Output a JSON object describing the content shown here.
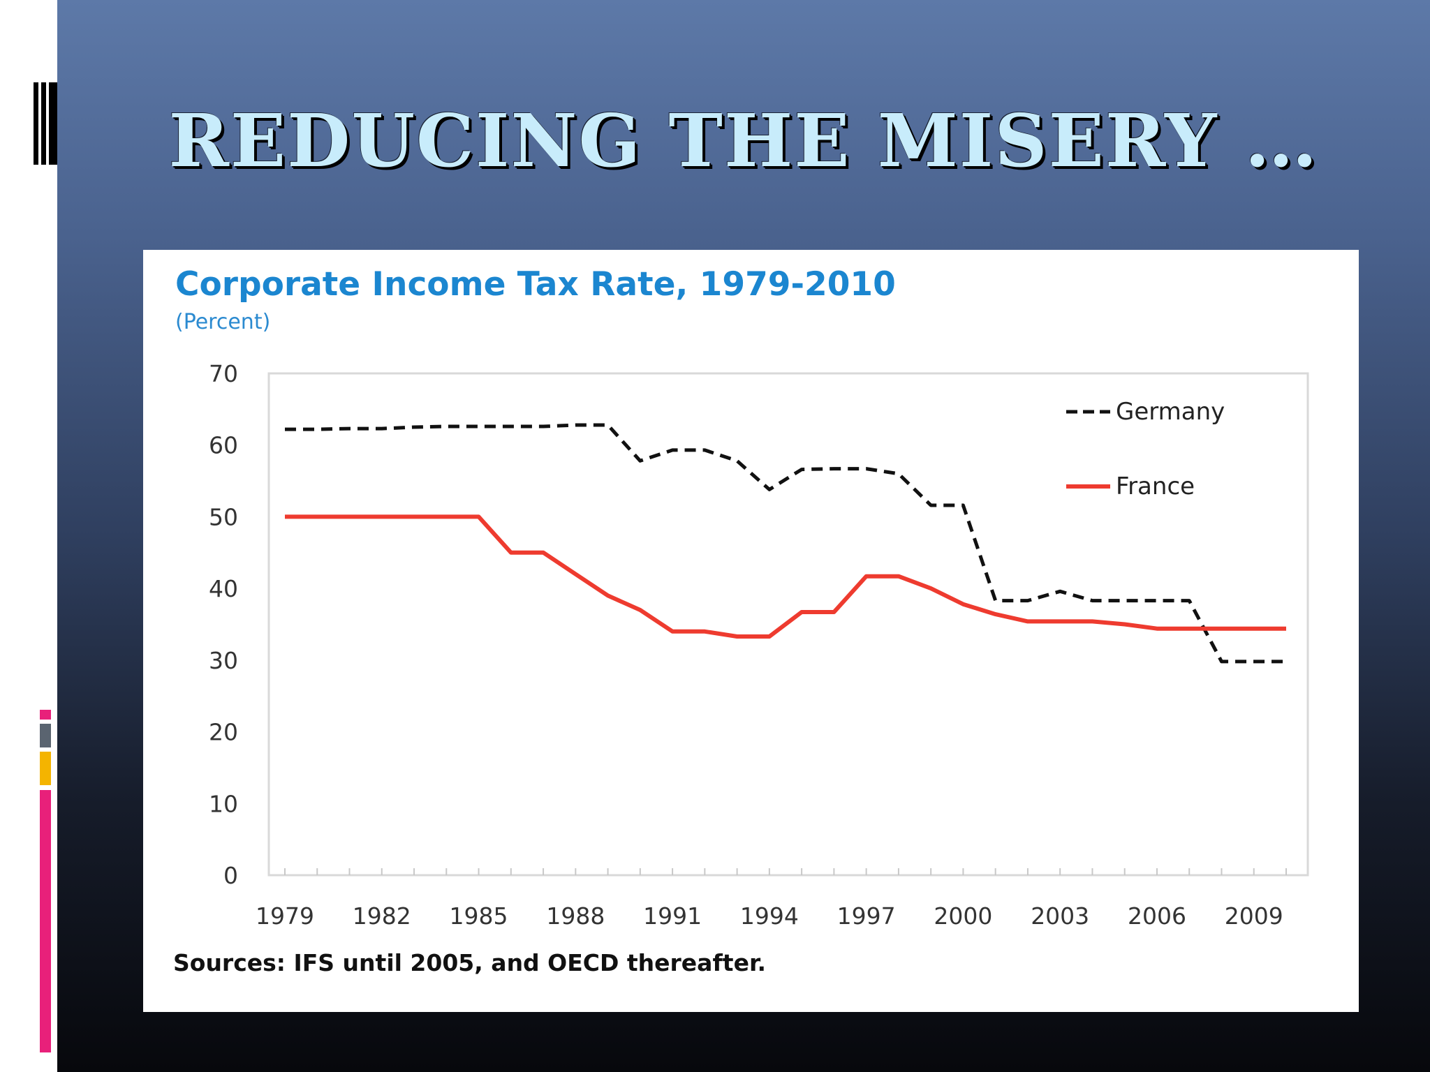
{
  "slide": {
    "title": "REDUCING THE MISERY …",
    "colors": {
      "background_top": "#5d79a8",
      "background_bottom": "#07080c",
      "title_fill": "#c8ecfb",
      "accent_pink": "#e8207a",
      "accent_gold": "#f4b400",
      "accent_gray": "#5a6470"
    }
  },
  "chart_data": {
    "type": "line",
    "title": "Corporate Income Tax Rate, 1979-2010",
    "subtitle": "(Percent)",
    "source": "Sources: IFS until 2005, and OECD thereafter.",
    "xlim": [
      1979,
      2010
    ],
    "ylim": [
      0,
      70
    ],
    "y_ticks": [
      0,
      10,
      20,
      30,
      40,
      50,
      60,
      70
    ],
    "x_tick_labels": [
      1979,
      1982,
      1985,
      1988,
      1991,
      1994,
      1997,
      2000,
      2003,
      2006,
      2009
    ],
    "grid": false,
    "legend_position": "top-right",
    "x": [
      1979,
      1980,
      1981,
      1982,
      1983,
      1984,
      1985,
      1986,
      1987,
      1988,
      1989,
      1990,
      1991,
      1992,
      1993,
      1994,
      1995,
      1996,
      1997,
      1998,
      1999,
      2000,
      2001,
      2002,
      2003,
      2004,
      2005,
      2006,
      2007,
      2008,
      2009,
      2010
    ],
    "series": [
      {
        "name": "Germany",
        "style": "dashed",
        "color": "#111111",
        "values": [
          62.2,
          62.2,
          62.3,
          62.3,
          62.5,
          62.6,
          62.6,
          62.6,
          62.6,
          62.8,
          62.8,
          57.8,
          59.3,
          59.3,
          57.8,
          53.8,
          56.6,
          56.7,
          56.7,
          56.0,
          51.6,
          51.6,
          38.3,
          38.3,
          39.6,
          38.3,
          38.3,
          38.3,
          38.3,
          29.8,
          29.8,
          29.8
        ]
      },
      {
        "name": "France",
        "style": "solid",
        "color": "#ee3b2f",
        "values": [
          50.0,
          50.0,
          50.0,
          50.0,
          50.0,
          50.0,
          50.0,
          45.0,
          45.0,
          42.0,
          39.0,
          37.0,
          34.0,
          34.0,
          33.3,
          33.3,
          36.7,
          36.7,
          41.7,
          41.7,
          40.0,
          37.8,
          36.4,
          35.4,
          35.4,
          35.4,
          35.0,
          34.4,
          34.4,
          34.4,
          34.4,
          34.4
        ]
      }
    ]
  }
}
